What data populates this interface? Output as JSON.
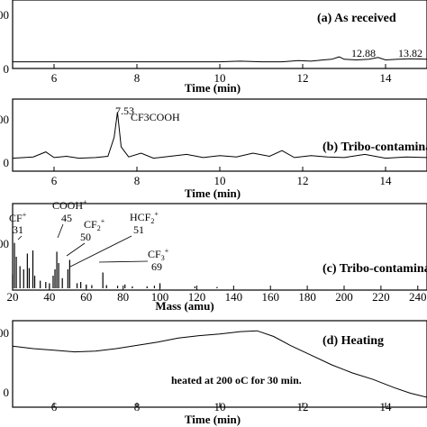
{
  "chart_data": [
    {
      "id": "a",
      "type": "line",
      "title": "(a) As received",
      "xlabel": "Time (min)",
      "xlim": [
        5,
        15
      ],
      "xticks": [
        "6",
        "8",
        "10",
        "12",
        "14"
      ],
      "yticks": [
        "00",
        "0"
      ],
      "ylim": [
        0,
        100
      ],
      "annotations": [
        "12.88",
        "13.82"
      ],
      "peak_values": [
        12.88,
        13.82
      ],
      "series": [
        {
          "x": [
            5,
            6,
            7,
            8,
            9,
            10,
            10.5,
            11,
            11.5,
            11.9,
            12.2,
            12.5,
            12.7,
            12.88,
            13.0,
            13.3,
            13.6,
            13.82,
            14.0,
            14.3,
            14.6,
            15
          ],
          "values": [
            8,
            8,
            8,
            8,
            8,
            8,
            9,
            8,
            8,
            10,
            9,
            11,
            12,
            16,
            12,
            11,
            12,
            15,
            11,
            12,
            13,
            12
          ]
        }
      ]
    },
    {
      "id": "b",
      "type": "line",
      "title": "(b) Tribo-contaminated",
      "xlabel": "Time (min)",
      "xlim": [
        5,
        15
      ],
      "xticks": [
        "6",
        "8",
        "10",
        "12",
        "14"
      ],
      "yticks": [
        "00",
        "0"
      ],
      "ylim": [
        0,
        100
      ],
      "annotations": [
        "7.53",
        "CF3COOH"
      ],
      "peak_values": [
        7.53
      ],
      "series": [
        {
          "x": [
            5,
            5.5,
            5.8,
            6.0,
            6.3,
            6.6,
            7.0,
            7.3,
            7.45,
            7.53,
            7.62,
            7.8,
            8.1,
            8.4,
            8.8,
            9.2,
            9.6,
            10.0,
            10.4,
            10.8,
            11.2,
            11.5,
            11.8,
            12.2,
            12.6,
            13.0,
            13.5,
            14.0,
            14.5,
            15
          ],
          "values": [
            12,
            14,
            22,
            13,
            15,
            12,
            13,
            15,
            45,
            85,
            30,
            14,
            20,
            12,
            15,
            18,
            13,
            16,
            14,
            20,
            15,
            24,
            13,
            16,
            14,
            13,
            18,
            12,
            14,
            13
          ]
        }
      ]
    },
    {
      "id": "c",
      "type": "bar",
      "title": "(c) Tribo-contaminated",
      "xlabel": "Mass (amu)",
      "xlim": [
        20,
        245
      ],
      "xticks": [
        "20",
        "40",
        "60",
        "80",
        "100",
        "120",
        "140",
        "160",
        "180",
        "200",
        "220",
        "240"
      ],
      "yticks": [
        "00"
      ],
      "ylim": [
        0,
        100
      ],
      "annotations": [
        {
          "label": "CF",
          "sup": "+",
          "mass": "31"
        },
        {
          "label": "COOH",
          "sup": "+",
          "mass": "45"
        },
        {
          "label": "CF",
          "sub": "2",
          "sup": "+",
          "mass": "50"
        },
        {
          "label": "HCF",
          "sub": "2",
          "sup": "+",
          "mass": "51"
        },
        {
          "label": "CF",
          "sub": "3",
          "sup": "+",
          "mass": "69"
        }
      ],
      "peaks": [
        {
          "mass": 20,
          "value": 22
        },
        {
          "mass": 21,
          "value": 72
        },
        {
          "mass": 22,
          "value": 50
        },
        {
          "mass": 24,
          "value": 35
        },
        {
          "mass": 26,
          "value": 30
        },
        {
          "mass": 28,
          "value": 55
        },
        {
          "mass": 29,
          "value": 32
        },
        {
          "mass": 31,
          "value": 60
        },
        {
          "mass": 32,
          "value": 20
        },
        {
          "mass": 35,
          "value": 12
        },
        {
          "mass": 38,
          "value": 10
        },
        {
          "mass": 40,
          "value": 8
        },
        {
          "mass": 42,
          "value": 20
        },
        {
          "mass": 43,
          "value": 30
        },
        {
          "mass": 44,
          "value": 58
        },
        {
          "mass": 45,
          "value": 40
        },
        {
          "mass": 47,
          "value": 16
        },
        {
          "mass": 50,
          "value": 30
        },
        {
          "mass": 51,
          "value": 45
        },
        {
          "mass": 55,
          "value": 8
        },
        {
          "mass": 57,
          "value": 10
        },
        {
          "mass": 60,
          "value": 6
        },
        {
          "mass": 63,
          "value": 5
        },
        {
          "mass": 69,
          "value": 25
        },
        {
          "mass": 71,
          "value": 5
        },
        {
          "mass": 77,
          "value": 4
        },
        {
          "mass": 81,
          "value": 6
        },
        {
          "mass": 85,
          "value": 3
        },
        {
          "mass": 93,
          "value": 3
        },
        {
          "mass": 97,
          "value": 4
        },
        {
          "mass": 100,
          "value": 8
        },
        {
          "mass": 119,
          "value": 3
        },
        {
          "mass": 131,
          "value": 2
        }
      ]
    },
    {
      "id": "d",
      "type": "line",
      "title": "(d) Heating",
      "note": "heated at 200 oC for 30 min.",
      "xlabel": "Time (min)",
      "xlim": [
        5,
        15
      ],
      "xticks": [
        "6",
        "8",
        "10",
        "12",
        "14"
      ],
      "yticks": [
        "00",
        "0"
      ],
      "ylim": [
        0,
        100
      ],
      "series": [
        {
          "x": [
            5,
            5.5,
            6,
            6.5,
            7,
            7.5,
            8,
            8.5,
            9,
            9.5,
            10,
            10.5,
            10.9,
            11.3,
            11.7,
            12.2,
            12.7,
            13.2,
            13.7,
            14.2,
            14.6,
            15
          ],
          "values": [
            73,
            70,
            68,
            66,
            67,
            70,
            74,
            78,
            83,
            86,
            88,
            91,
            92,
            85,
            74,
            62,
            50,
            40,
            32,
            22,
            15,
            10
          ]
        }
      ]
    }
  ]
}
